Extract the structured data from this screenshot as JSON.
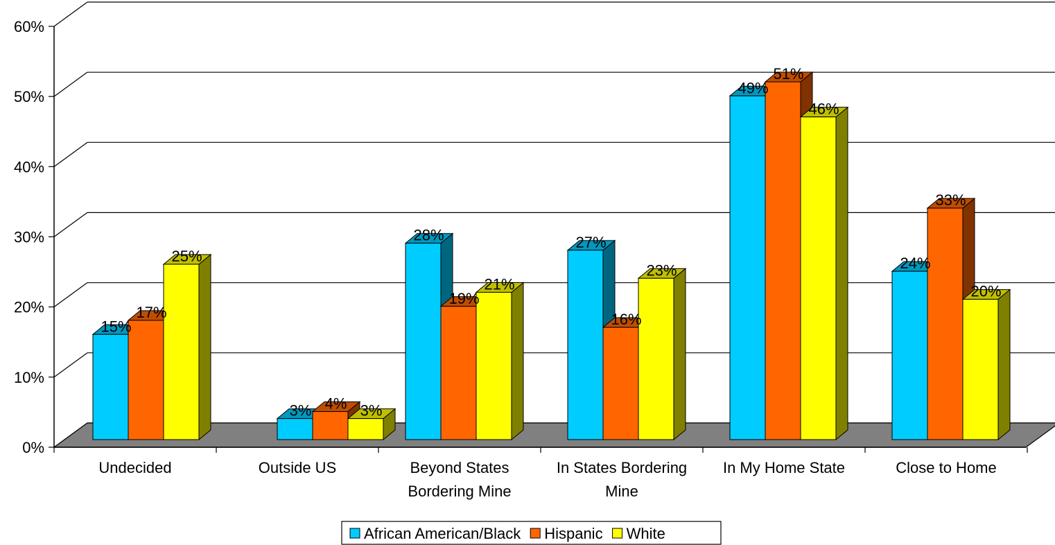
{
  "colors": {
    "African American/Black": "#00CCFF",
    "Hispanic": "#FF6600",
    "White": "#FFFF00",
    "floor": "#808080"
  },
  "chart_data": {
    "type": "bar",
    "title": "",
    "xlabel": "",
    "ylabel": "",
    "categories": [
      "Undecided",
      "Outside US",
      "Beyond States Bordering Mine",
      "In States Bordering Mine",
      "In My Home State",
      "Close to Home"
    ],
    "series": [
      {
        "name": "African American/Black",
        "values": [
          15,
          3,
          28,
          27,
          49,
          24
        ]
      },
      {
        "name": "Hispanic",
        "values": [
          17,
          4,
          19,
          16,
          51,
          33
        ]
      },
      {
        "name": "White",
        "values": [
          25,
          3,
          21,
          23,
          46,
          20
        ]
      }
    ],
    "ylim": [
      0,
      60
    ],
    "yticks": [
      "0%",
      "10%",
      "20%",
      "30%",
      "40%",
      "50%",
      "60%"
    ],
    "data_labels": [
      [
        "15%",
        "3%",
        "28%",
        "27%",
        "49%",
        "24%"
      ],
      [
        "17%",
        "4%",
        "19%",
        "16%",
        "51%",
        "33%"
      ],
      [
        "25%",
        "3%",
        "21%",
        "23%",
        "46%",
        "20%"
      ]
    ],
    "legend_position": "bottom",
    "grid": true,
    "style": "3d-clustered-column"
  }
}
